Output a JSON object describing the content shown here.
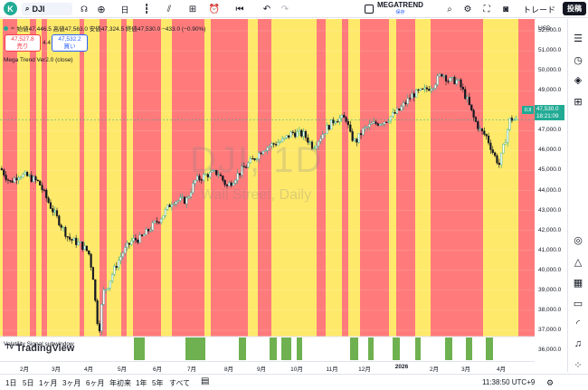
{
  "toolbar": {
    "avatar_letter": "K",
    "symbol": "DJI",
    "interval": "日",
    "indicator_name": "MEGATREND",
    "indicator_sub": "保存",
    "trade_label": "トレード",
    "publish_label": "投稿"
  },
  "legend": {
    "ohlc": "始値47,446.5 高値47,563.0 安値47,324.5 終値47,530.0 −433.0 (−0.90%)",
    "sell_price": "47,527.8",
    "sell_label": "売り",
    "spread": "4.4",
    "buy_price": "47,532.2",
    "buy_label": "買い",
    "indicator": "Mega Trend Ver2.0 (close)",
    "volume": "Volatility Signal subwindow",
    "logo": "TradingView"
  },
  "watermark": {
    "symbol": "DJI, 1D",
    "sub": "Wall Street, Daily"
  },
  "price_scale": {
    "currency": "USD",
    "labels": [
      "52,000.0",
      "50,000.0",
      "48,000.0",
      "46,000.0",
      "44,000.0",
      "42,000.0",
      "40,000.0",
      "38,000.0",
      "37,000.0",
      "36,000.0",
      "51,000.0",
      "49,000.0",
      "47,000.0",
      "45,000.0",
      "43,000.0",
      "41,000.0",
      "39,000.0"
    ],
    "current_price": "47,530.0",
    "countdown": "18:21:09",
    "tag": "DJI"
  },
  "time_axis": {
    "labels": [
      "2月",
      "3月",
      "4月",
      "5月",
      "6月",
      "7月",
      "8月",
      "9月",
      "10月",
      "11月",
      "12月",
      "2026",
      "2月",
      "3月",
      "4月"
    ]
  },
  "bottombar": {
    "ranges": [
      "1日",
      "5日",
      "1ヶ月",
      "3ヶ月",
      "6ヶ月",
      "年初来",
      "1年",
      "5年",
      "すべて"
    ],
    "clock": "11:38:50 UTC+9"
  },
  "colors": {
    "up": "#22ab94",
    "down": "#f23645",
    "bear_zone": "#ff7b7b",
    "bull_zone": "#ffe96b",
    "signal": "#6fb150"
  },
  "chart_data": {
    "type": "candlestick",
    "ylim": [
      36000,
      52000
    ],
    "zones": [
      {
        "from": 0,
        "to": 3,
        "color": "bull"
      },
      {
        "from": 3,
        "to": 19,
        "color": "bear"
      },
      {
        "from": 19,
        "to": 33,
        "color": "bull"
      },
      {
        "from": 33,
        "to": 40,
        "color": "bear"
      },
      {
        "from": 40,
        "to": 46,
        "color": "bull"
      },
      {
        "from": 46,
        "to": 52,
        "color": "bear"
      },
      {
        "from": 52,
        "to": 88,
        "color": "bull"
      },
      {
        "from": 88,
        "to": 93,
        "color": "bear"
      },
      {
        "from": 93,
        "to": 110,
        "color": "bull"
      },
      {
        "from": 110,
        "to": 118,
        "color": "bear"
      },
      {
        "from": 118,
        "to": 134,
        "color": "bull"
      },
      {
        "from": 134,
        "to": 140,
        "color": "bear"
      },
      {
        "from": 140,
        "to": 147,
        "color": "bull"
      },
      {
        "from": 147,
        "to": 178,
        "color": "bear"
      },
      {
        "from": 178,
        "to": 190,
        "color": "bull"
      },
      {
        "from": 190,
        "to": 226,
        "color": "bear"
      },
      {
        "from": 226,
        "to": 233,
        "color": "bull"
      },
      {
        "from": 233,
        "to": 274,
        "color": "bear"
      },
      {
        "from": 274,
        "to": 285,
        "color": "bull"
      },
      {
        "from": 285,
        "to": 300,
        "color": "bear"
      },
      {
        "from": 300,
        "to": 350,
        "color": "bull"
      },
      {
        "from": 350,
        "to": 360,
        "color": "bear"
      },
      {
        "from": 360,
        "to": 378,
        "color": "bull"
      },
      {
        "from": 378,
        "to": 385,
        "color": "bear"
      },
      {
        "from": 385,
        "to": 398,
        "color": "bull"
      },
      {
        "from": 398,
        "to": 430,
        "color": "bear"
      },
      {
        "from": 430,
        "to": 438,
        "color": "bull"
      },
      {
        "from": 438,
        "to": 459,
        "color": "bear"
      },
      {
        "from": 459,
        "to": 476,
        "color": "bull"
      },
      {
        "from": 476,
        "to": 534,
        "color": "bear"
      },
      {
        "from": 534,
        "to": 573,
        "color": "bull"
      },
      {
        "from": 573,
        "to": 591,
        "color": "bear"
      }
    ],
    "close_path": [
      [
        0,
        45100
      ],
      [
        10,
        44400
      ],
      [
        20,
        44800
      ],
      [
        30,
        44700
      ],
      [
        42,
        44400
      ],
      [
        55,
        43200
      ],
      [
        65,
        42400
      ],
      [
        75,
        41600
      ],
      [
        88,
        41300
      ],
      [
        97,
        40900
      ],
      [
        102,
        39700
      ],
      [
        106,
        37600
      ],
      [
        109,
        37100
      ],
      [
        113,
        38900
      ],
      [
        118,
        39200
      ],
      [
        123,
        39800
      ],
      [
        128,
        40300
      ],
      [
        135,
        40900
      ],
      [
        145,
        41500
      ],
      [
        155,
        41600
      ],
      [
        165,
        42100
      ],
      [
        178,
        42700
      ],
      [
        190,
        43500
      ],
      [
        205,
        43500
      ],
      [
        215,
        44500
      ],
      [
        228,
        44800
      ],
      [
        240,
        44900
      ],
      [
        250,
        44200
      ],
      [
        258,
        44600
      ],
      [
        268,
        45100
      ],
      [
        280,
        45600
      ],
      [
        290,
        46100
      ],
      [
        300,
        46300
      ],
      [
        312,
        46500
      ],
      [
        322,
        46900
      ],
      [
        335,
        46800
      ],
      [
        345,
        46200
      ],
      [
        352,
        46600
      ],
      [
        360,
        47100
      ],
      [
        370,
        47600
      ],
      [
        382,
        47600
      ],
      [
        386,
        46800
      ],
      [
        392,
        46400
      ],
      [
        400,
        47000
      ],
      [
        410,
        47300
      ],
      [
        425,
        47500
      ],
      [
        440,
        48000
      ],
      [
        455,
        48800
      ],
      [
        468,
        49000
      ],
      [
        478,
        49300
      ],
      [
        488,
        49900
      ],
      [
        495,
        49500
      ],
      [
        505,
        49500
      ],
      [
        515,
        48600
      ],
      [
        523,
        47600
      ],
      [
        530,
        47000
      ],
      [
        537,
        46700
      ],
      [
        545,
        45800
      ],
      [
        551,
        45300
      ],
      [
        557,
        46400
      ],
      [
        563,
        47600
      ],
      [
        570,
        47530
      ]
    ],
    "signals_x": [
      [
        148,
        160
      ],
      [
        205,
        227
      ],
      [
        264,
        272
      ],
      [
        298,
        306
      ],
      [
        311,
        322
      ],
      [
        328,
        334
      ],
      [
        387,
        396
      ],
      [
        407,
        413
      ],
      [
        434,
        442
      ],
      [
        459,
        465
      ],
      [
        492,
        500
      ],
      [
        515,
        522
      ],
      [
        537,
        545
      ]
    ]
  }
}
